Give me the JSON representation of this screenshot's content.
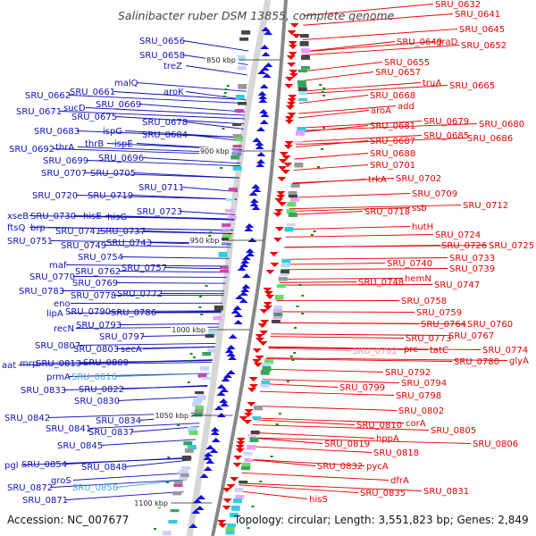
{
  "title": "Salinibacter ruber DSM 13855, complete genome",
  "accession": "Accession: NC_007677",
  "summary": "Topology: circular; Length: 3,551,823 bp; Genes: 2,849",
  "colors": {
    "left": "#1010b8",
    "right": "#e80000",
    "pink": "#ee88bb",
    "cyan": "#44aacc"
  },
  "scale_ticks": [
    "850 kbp",
    "900 kbp",
    "950 kbp",
    "1000 kbp",
    "1050 kbp",
    "1100 kbp"
  ],
  "left_genes": [
    "SRU_0656",
    "SRU_0658",
    "treZ",
    "malQ",
    "aroK",
    "SRU_0661",
    "SRU_0662",
    "SRU_0669",
    "sucD",
    "SRU_0671",
    "SRU_0675",
    "SRU_0678",
    "SRU_0683",
    "ispG",
    "SRU_0684",
    "SRU_0692",
    "thrA",
    "thrB",
    "ispE",
    "SRU_0696",
    "SRU_0699",
    "SRU_0707",
    "SRU_0705",
    "SRU_0711",
    "SRU_0720",
    "SRU_0719",
    "SRU_0723",
    "xseB",
    "SRU_0730",
    "hisE",
    "hisG",
    "ftsQ",
    "brp",
    "SRU_0741",
    "SRU_0737",
    "SRU_0751",
    "SRU_0749",
    "SRU_0743",
    "SRU_0754",
    "maf",
    "SRU_0762",
    "SRU_0757",
    "SRU_0770",
    "SRU_0769",
    "SRU_0783",
    "SRU_0778",
    "SRU_0772",
    "eno",
    "lipA",
    "SRU_0790",
    "SRU_0786",
    "recN",
    "SRU_0793",
    "SRU_0797",
    "SRU_0807",
    "SRU_0803",
    "secA",
    "aat",
    "mrp",
    "SRU_0813",
    "SRU_0809",
    "prmA",
    "SRU_0816",
    "SRU_0833",
    "SRU_0822",
    "SRU_0830",
    "SRU_0842",
    "SRU_0834",
    "SRU_0841",
    "SRU_0837",
    "SRU_0845",
    "pgl",
    "SRU_0854",
    "SRU_0848",
    "groS",
    "SRU_0872",
    "SRU_0856",
    "SRU_0871"
  ],
  "right_genes": [
    "SRU_0632",
    "SRU_0641",
    "SRU_0645",
    "SRU_0649",
    "graD",
    "SRU_0652",
    "SRU_0655",
    "SRU_0657",
    "truA",
    "SRU_0665",
    "SRU_0668",
    "aroA",
    "add",
    "SRU_0679",
    "SRU_0680",
    "SRU_0681",
    "SRU_0685",
    "SRU_0686",
    "SRU_0687",
    "SRU_0688",
    "SRU_0701",
    "trkA",
    "SRU_0702",
    "SRU_0709",
    "ssb",
    "SRU_0712",
    "SRU_0718",
    "hutH",
    "SRU_0724",
    "SRU_0726",
    "SRU_0725",
    "SRU_0733",
    "SRU_0740",
    "SRU_0739",
    "hemN",
    "SRU_0748",
    "SRU_0747",
    "SRU_0758",
    "SRU_0759",
    "SRU_0764",
    "SRU_0760",
    "SRU_0767",
    "SRU_0773",
    "SRU_0774",
    "prc",
    "tatC",
    "SRU_0782",
    "SRU_0780",
    "glyA",
    "SRU_0792",
    "SRU_0794",
    "SRU_0799",
    "SRU_0798",
    "SRU_0802",
    "corA",
    "SRU_0810",
    "SRU_0805",
    "hppA",
    "SRU_0806",
    "SRU_0819",
    "SRU_0818",
    "SRU_0832",
    "pycA",
    "dfrA",
    "SRU_0831",
    "SRU_0835",
    "hisS"
  ]
}
